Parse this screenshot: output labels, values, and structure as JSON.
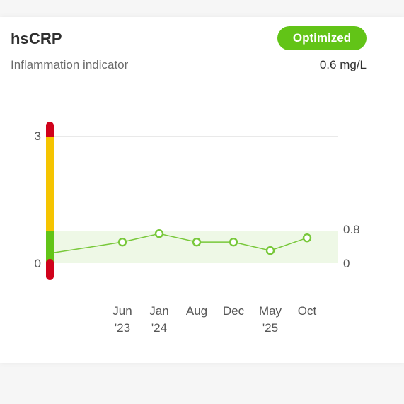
{
  "card": {
    "title": "hsCRP",
    "subtitle": "Inflammation indicator",
    "status_badge": "Optimized",
    "current_value": "0.6 mg/L"
  },
  "colors": {
    "optimal": "#62c417",
    "optimal_band": "#eef8e6",
    "warning": "#f5c400",
    "danger": "#d0021b",
    "line": "#78c83a"
  },
  "chart_data": {
    "type": "line",
    "ylim": [
      0,
      3
    ],
    "y_ticks_left": [
      "3",
      "0"
    ],
    "y_ticks_right": [
      "0.8",
      "0"
    ],
    "optimal_range": [
      0,
      0.8
    ],
    "x_labels": [
      {
        "line1": "Jun",
        "line2": "'23"
      },
      {
        "line1": "Jan",
        "line2": "'24"
      },
      {
        "line1": "Aug",
        "line2": ""
      },
      {
        "line1": "Dec",
        "line2": ""
      },
      {
        "line1": "May",
        "line2": "'25"
      },
      {
        "line1": "Oct",
        "line2": ""
      }
    ],
    "values": [
      0.5,
      0.7,
      0.5,
      0.5,
      0.3,
      0.6
    ],
    "leading_value": 0.25
  }
}
